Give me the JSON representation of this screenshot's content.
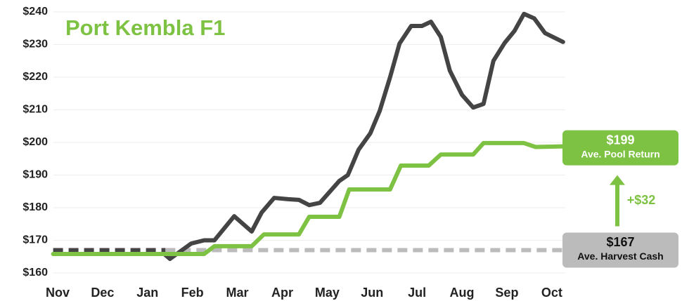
{
  "chart_data": {
    "type": "line",
    "title": "Port Kembla F1",
    "title_color": "#7dc242",
    "xlim": [
      -0.1,
      11.3
    ],
    "xticks": [
      {
        "value": 0,
        "label": "Nov"
      },
      {
        "value": 1,
        "label": "Dec"
      },
      {
        "value": 2,
        "label": "Jan"
      },
      {
        "value": 3,
        "label": "Feb"
      },
      {
        "value": 4,
        "label": "Mar"
      },
      {
        "value": 5,
        "label": "Apr"
      },
      {
        "value": 6,
        "label": "May"
      },
      {
        "value": 7,
        "label": "Jun"
      },
      {
        "value": 8,
        "label": "Jul"
      },
      {
        "value": 9,
        "label": "Aug"
      },
      {
        "value": 10,
        "label": "Sep"
      },
      {
        "value": 11,
        "label": "Oct"
      }
    ],
    "ylim": [
      160,
      240
    ],
    "yticks": [
      {
        "value": 160,
        "label": "$160"
      },
      {
        "value": 170,
        "label": "$170"
      },
      {
        "value": 180,
        "label": "$180"
      },
      {
        "value": 190,
        "label": "$190"
      },
      {
        "value": 200,
        "label": "$200"
      },
      {
        "value": 210,
        "label": "$210"
      },
      {
        "value": 220,
        "label": "$220"
      },
      {
        "value": 230,
        "label": "$230"
      },
      {
        "value": 240,
        "label": "$240"
      }
    ],
    "grid": true,
    "reference_lines": [
      {
        "value": 167,
        "color": "#444444",
        "x": [
          -0.1,
          2.4
        ]
      },
      {
        "value": 167,
        "color": "#bbbbbb",
        "x": [
          2.4,
          11.3
        ]
      }
    ],
    "series": [
      {
        "color": "#444444",
        "x": [
          2.39,
          2.5,
          2.97,
          3.26,
          3.49,
          3.93,
          4.32,
          4.54,
          4.82,
          5.13,
          5.37,
          5.6,
          5.84,
          6.27,
          6.46,
          6.7,
          6.96,
          7.17,
          7.4,
          7.61,
          7.87,
          8.11,
          8.31,
          8.53,
          8.73,
          9.0,
          9.25,
          9.48,
          9.7,
          9.95,
          10.17,
          10.38,
          10.61,
          10.85,
          11.25
        ],
        "values": [
          165.6,
          164.3,
          169,
          170,
          170,
          177.4,
          172.7,
          178.5,
          183,
          182.6,
          182.4,
          180.8,
          181.5,
          188.2,
          190,
          197.8,
          202.8,
          209.7,
          220,
          230.3,
          235.7,
          235.7,
          237,
          232.3,
          222,
          214.6,
          210.7,
          211.8,
          225,
          230.5,
          234.2,
          239.4,
          238,
          233.5,
          230.8
        ]
      },
      {
        "color": "#7dc242",
        "x": [
          -0.1,
          3.26,
          3.49,
          4.32,
          4.59,
          5.37,
          5.6,
          6.27,
          6.49,
          7.4,
          7.64,
          8.26,
          8.53,
          9.25,
          9.48,
          10.38,
          10.64,
          11.24
        ],
        "values": [
          165.8,
          165.8,
          168.2,
          168.2,
          171.8,
          171.8,
          177.2,
          177.2,
          185.6,
          185.6,
          192.9,
          192.9,
          196.3,
          196.3,
          199.8,
          199.8,
          198.6,
          198.8
        ]
      }
    ],
    "annotations": [
      {
        "value": 199,
        "label": "$199",
        "text": "Ave. Pool Return",
        "color": "#7dc242"
      },
      {
        "value": 167,
        "label": "$167",
        "text": "Ave. Harvest Cash",
        "color": "#bbbbbb"
      },
      {
        "value": 32,
        "label": "+$32",
        "color": "#7dc242"
      }
    ]
  }
}
